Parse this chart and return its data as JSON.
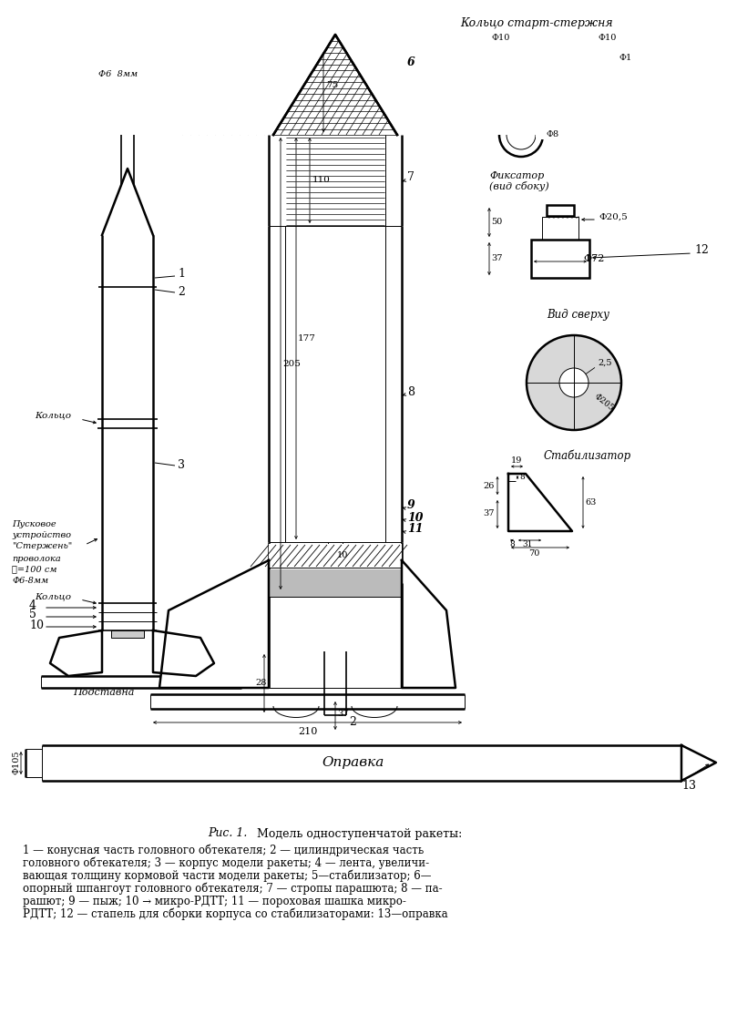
{
  "bg_color": "#ffffff",
  "lw_main": 1.8,
  "lw_med": 1.2,
  "lw_thin": 0.7,
  "lw_dim": 0.6,
  "caption_title_italic": "Рис. 1.",
  "caption_title_normal": " Модель одноступенчатой ракеты:",
  "caption_lines": [
    "1 — конусная часть головного обтекателя; 2 — цилиндрическая часть",
    "головного обтекателя; 3 — корпус модели ракеты; 4 — лента, увеличи-",
    "вающая толщину кормовой части модели ракеты; 5—стабилизатор; 6—",
    "опорный шпангоут головного обтекателя; 7 — стропы парашюта; 8 — па-",
    "рашют; 9 — пыж; 10 → микро-РДТТ; 11 — пороховая шашка микро-",
    "РДТТ; 12 — стапель для сборки корпуса со стабилизаторами: 13—оправка"
  ]
}
